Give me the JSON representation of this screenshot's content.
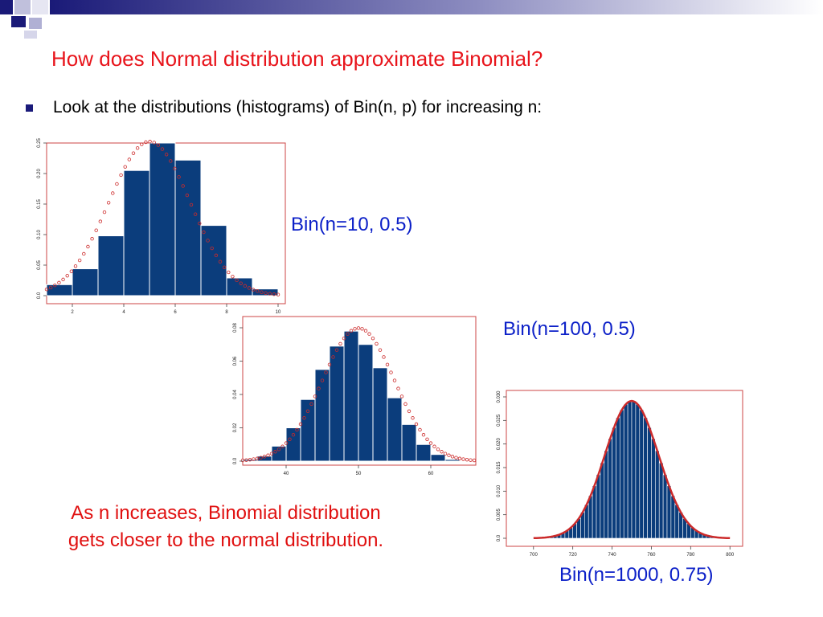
{
  "slide": {
    "title": "How does Normal distribution approximate Binomial?",
    "bullet": "Look at the distributions (histograms) of Bin(n, p) for increasing n:",
    "note": "As n increases, Binomial distribution gets closer to the normal distribution.",
    "colors": {
      "title": "#e8141b",
      "label": "#0c20c8",
      "bar": "#0b3d7c",
      "curve": "#cc2a2a",
      "frame": "#cc4444",
      "note": "#e01010"
    }
  },
  "chart_data": [
    {
      "type": "bar",
      "label": "Bin(n=10, 0.5)",
      "xlim": [
        1,
        10
      ],
      "ylim": [
        0,
        0.25
      ],
      "xticks": [
        2,
        4,
        6,
        8,
        10
      ],
      "yticks": [
        0.0,
        0.05,
        0.1,
        0.15,
        0.2,
        0.25
      ],
      "ytick_labels": [
        "0.0",
        "0.05",
        "0.10",
        "0.15",
        "0.20",
        "0.25"
      ],
      "bins": [
        [
          1,
          2,
          0.018
        ],
        [
          2,
          3,
          0.044
        ],
        [
          3,
          4,
          0.098
        ],
        [
          4,
          5,
          0.205
        ],
        [
          5,
          6,
          0.25
        ],
        [
          6,
          7,
          0.222
        ],
        [
          7,
          8,
          0.115
        ],
        [
          8,
          9,
          0.029
        ],
        [
          9,
          10,
          0.011
        ]
      ],
      "normal": {
        "mean": 5,
        "sd": 1.581,
        "xrange": [
          1,
          10
        ],
        "points": 56,
        "style": "open-circles"
      }
    },
    {
      "type": "bar",
      "label": "Bin(n=100, 0.5)",
      "xlim": [
        34,
        66
      ],
      "ylim": [
        0,
        0.08
      ],
      "xticks": [
        40,
        50,
        60
      ],
      "yticks": [
        0.0,
        0.02,
        0.04,
        0.06,
        0.08
      ],
      "ytick_labels": [
        "0.0",
        "0.02",
        "0.04",
        "0.06",
        "0.08"
      ],
      "bins": [
        [
          34,
          36,
          0.001
        ],
        [
          36,
          38,
          0.003
        ],
        [
          38,
          40,
          0.009
        ],
        [
          40,
          42,
          0.02
        ],
        [
          42,
          44,
          0.037
        ],
        [
          44,
          46,
          0.055
        ],
        [
          46,
          48,
          0.069
        ],
        [
          48,
          50,
          0.078
        ],
        [
          50,
          52,
          0.07
        ],
        [
          52,
          54,
          0.056
        ],
        [
          54,
          56,
          0.038
        ],
        [
          56,
          58,
          0.022
        ],
        [
          58,
          60,
          0.01
        ],
        [
          60,
          62,
          0.004
        ],
        [
          62,
          64,
          0.001
        ],
        [
          64,
          66,
          0.0004
        ]
      ],
      "normal": {
        "mean": 50,
        "sd": 5,
        "xrange": [
          34,
          66
        ],
        "points": 64,
        "style": "open-circles"
      }
    },
    {
      "type": "bar",
      "label": "Bin(n=1000, 0.75)",
      "xlim": [
        696,
        804
      ],
      "ylim": [
        0,
        0.03
      ],
      "xticks": [
        700,
        720,
        740,
        760,
        780,
        800
      ],
      "yticks": [
        0.0,
        0.005,
        0.01,
        0.015,
        0.02,
        0.025,
        0.03
      ],
      "ytick_labels": [
        "0.0",
        "0.005",
        "0.010",
        "0.015",
        "0.020",
        "0.025",
        "0.030"
      ],
      "bins_from_normal": {
        "start": 700,
        "end": 800,
        "width": 2
      },
      "normal": {
        "mean": 750,
        "sd": 13.69,
        "xrange": [
          700,
          800
        ],
        "points": 120,
        "style": "line"
      }
    }
  ]
}
